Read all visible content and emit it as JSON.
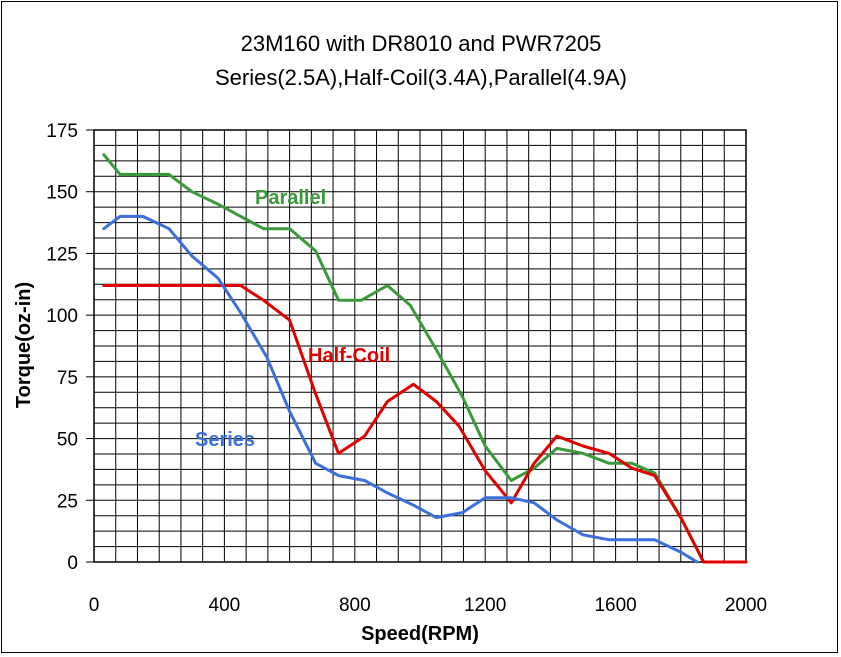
{
  "chart_data": {
    "type": "line",
    "title": "23M160 with DR8010 and PWR7205",
    "subtitle": "Series(2.5A),Half-Coil(3.4A),Parallel(4.9A)",
    "xlabel": "Speed(RPM)",
    "ylabel": "Torque(oz-in)",
    "xlim": [
      0,
      2000
    ],
    "ylim": [
      0,
      175
    ],
    "xticks": [
      0,
      400,
      800,
      1200,
      1600,
      2000
    ],
    "yticks": [
      0,
      25,
      50,
      75,
      100,
      125,
      150,
      175
    ],
    "grid": true,
    "legend": "none",
    "series": [
      {
        "name": "Parallel",
        "color": "#3a9a3a",
        "x": [
          30,
          80,
          150,
          230,
          300,
          380,
          450,
          520,
          600,
          680,
          750,
          820,
          900,
          970,
          1050,
          1130,
          1200,
          1280,
          1350,
          1420,
          1500,
          1580,
          1650,
          1720,
          1800,
          1870,
          2000
        ],
        "y": [
          165,
          157,
          157,
          157,
          150,
          145,
          140,
          135,
          135,
          126,
          106,
          106,
          112,
          104,
          86,
          67,
          47,
          33,
          38,
          46,
          44,
          40,
          40,
          36,
          18,
          0,
          0
        ]
      },
      {
        "name": "Half-Coil",
        "color": "#e00000",
        "x": [
          30,
          100,
          200,
          300,
          380,
          450,
          520,
          600,
          680,
          750,
          830,
          900,
          980,
          1050,
          1120,
          1200,
          1280,
          1350,
          1420,
          1500,
          1580,
          1650,
          1720,
          1800,
          1870,
          2000
        ],
        "y": [
          112,
          112,
          112,
          112,
          112,
          112,
          106,
          98,
          68,
          44,
          51,
          65,
          72,
          65,
          55,
          37,
          24,
          40,
          51,
          47,
          44,
          38,
          35,
          18,
          0,
          0
        ]
      },
      {
        "name": "Series",
        "color": "#3b6fdc",
        "x": [
          30,
          80,
          150,
          230,
          300,
          380,
          450,
          530,
          600,
          680,
          750,
          830,
          900,
          980,
          1050,
          1130,
          1200,
          1280,
          1350,
          1420,
          1500,
          1580,
          1650,
          1720,
          1800,
          1850
        ],
        "y": [
          135,
          140,
          140,
          135,
          124,
          115,
          101,
          83,
          61,
          40,
          35,
          33,
          28,
          23,
          18,
          20,
          26,
          26,
          24,
          17,
          11,
          9,
          9,
          9,
          4,
          0
        ]
      }
    ],
    "annotations": [
      {
        "text": "Parallel",
        "series": "Parallel"
      },
      {
        "text": "Half-Coil",
        "series": "Half-Coil"
      },
      {
        "text": "Series",
        "series": "Series"
      }
    ]
  }
}
